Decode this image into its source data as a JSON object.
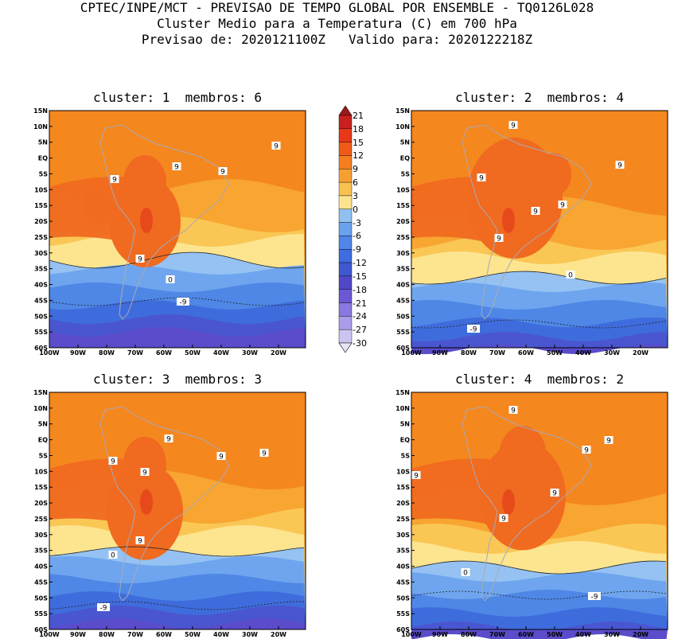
{
  "header": {
    "line1": "CPTEC/INPE/MCT - PREVISAO DE TEMPO GLOBAL POR ENSEMBLE - TQ0126L028",
    "line2": "Cluster Medio para a Temperatura (C) em 700 hPa",
    "line3": "Previsao de: 2020121100Z   Valido para: 2020122218Z"
  },
  "panels": [
    {
      "title": "cluster: 1  membros: 6"
    },
    {
      "title": "cluster: 2  membros: 4"
    },
    {
      "title": "cluster: 3  membros: 3"
    },
    {
      "title": "cluster: 4  membros: 2"
    }
  ],
  "lat_labels": [
    "15N",
    "10N",
    "5N",
    "EQ",
    "5S",
    "10S",
    "15S",
    "20S",
    "25S",
    "30S",
    "35S",
    "40S",
    "45S",
    "50S",
    "55S",
    "60S"
  ],
  "lon_labels": [
    "100W",
    "90W",
    "80W",
    "70W",
    "60W",
    "50W",
    "40W",
    "30W",
    "20W"
  ],
  "contour_labels": {
    "zero": "0",
    "nine": "9",
    "minus_nine": "-9"
  },
  "colorbar": {
    "labels": [
      "21",
      "18",
      "15",
      "12",
      "9",
      "6",
      "3",
      "0",
      "-3",
      "-6",
      "-9",
      "-12",
      "-15",
      "-18",
      "-21",
      "-24",
      "-27",
      "-30"
    ],
    "colors": [
      "#a01818",
      "#c82020",
      "#e83818",
      "#f05a18",
      "#f57e20",
      "#f7a032",
      "#f9c250",
      "#fde48c",
      "#8fc0f0",
      "#6aa2ee",
      "#4f86e8",
      "#3f6cde",
      "#4058d0",
      "#5048c8",
      "#6a58d4",
      "#8a78e0",
      "#aa9ce8",
      "#ccc4f0",
      "#e8e4f8"
    ]
  },
  "map_colors": {
    "band_12": "#f06a20",
    "band_9": "#f5871f",
    "band_6": "#f8a531",
    "band_3": "#fac755",
    "band_0": "#fde590",
    "band_m3": "#95c2f2",
    "band_m6": "#6ea5ee",
    "band_m9": "#4f87e6",
    "band_m12": "#3f6cdc",
    "band_m15": "#4a56cf",
    "band_m18": "#5a4cca",
    "band_15": "#e64a1a",
    "coast": "#a9a9b5"
  }
}
